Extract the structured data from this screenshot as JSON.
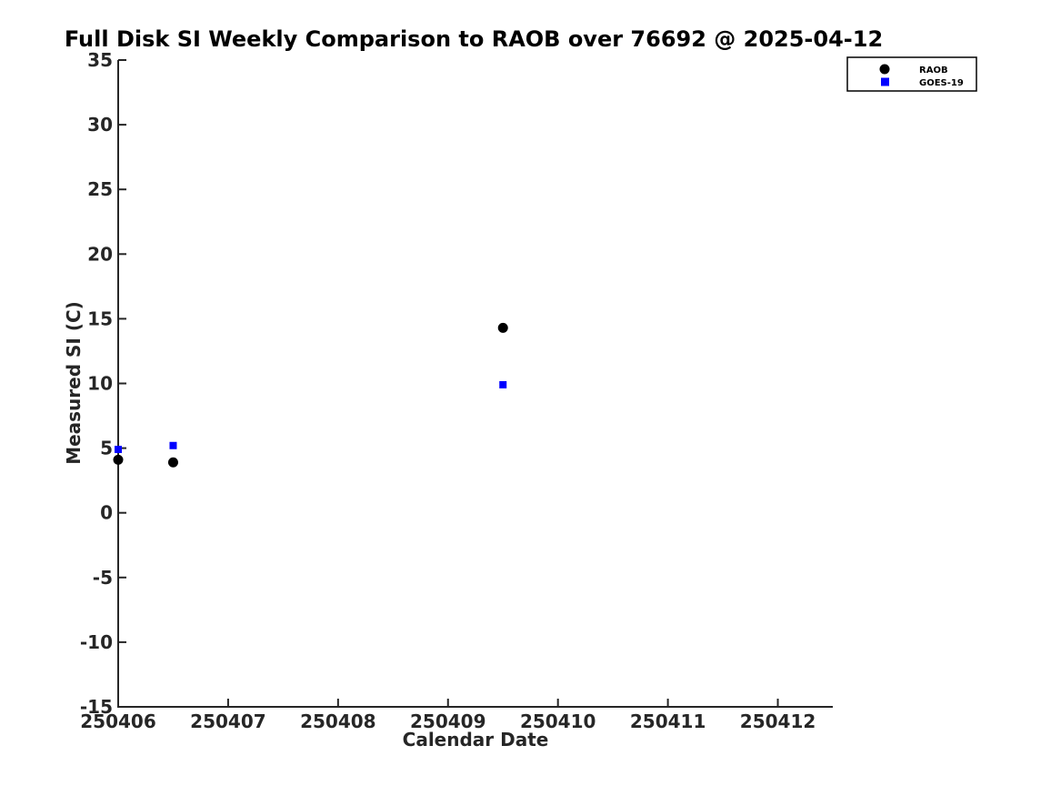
{
  "chart_data": {
    "type": "scatter",
    "title": "Full Disk SI Weekly Comparison to RAOB over 76692 @ 2025-04-12",
    "xlabel": "Calendar Date",
    "ylabel": "Measured SI (C)",
    "xlim": [
      250406,
      250412.5
    ],
    "ylim": [
      -15,
      35
    ],
    "x_ticks": [
      250406,
      250407,
      250408,
      250409,
      250410,
      250411,
      250412
    ],
    "y_ticks": [
      35,
      30,
      25,
      20,
      15,
      10,
      5,
      0,
      -5,
      -10,
      -15
    ],
    "grid": false,
    "legend_position": "top-right",
    "series": [
      {
        "name": "RAOB",
        "marker": "circle",
        "color": "#000000",
        "x": [
          250406.0,
          250406.5,
          250409.5
        ],
        "y": [
          4.1,
          3.9,
          14.3
        ]
      },
      {
        "name": "GOES-19",
        "marker": "square",
        "color": "#0000ff",
        "x": [
          250406.0,
          250406.5,
          250409.5
        ],
        "y": [
          4.9,
          5.2,
          9.9
        ]
      }
    ]
  },
  "colors": {
    "background": "#ffffff",
    "axis": "#262626",
    "title_text": "#000000",
    "raob_marker": "#000000",
    "goes19_marker": "#0000ff"
  }
}
